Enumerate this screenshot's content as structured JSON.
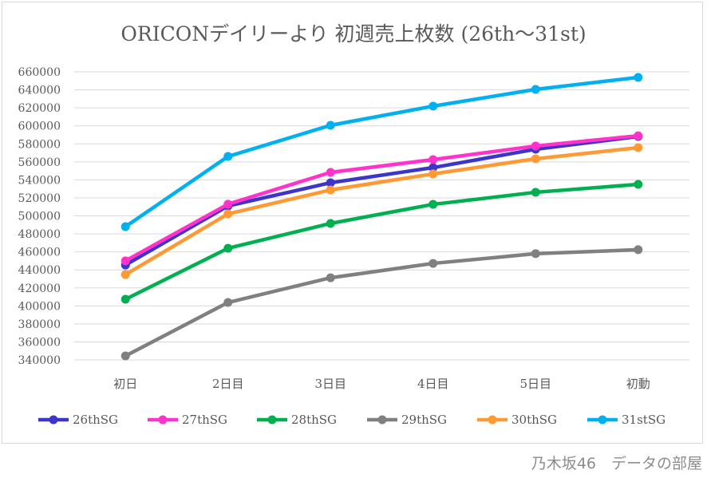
{
  "watermark": "乃木坂46　データの部屋",
  "chart_data": {
    "type": "line",
    "title": "ORICONデイリーより 初週売上枚数 (26th〜31st)",
    "categories": [
      "初日",
      "2日目",
      "3日目",
      "4日目",
      "5日目",
      "初動"
    ],
    "ylim": [
      340000,
      660000
    ],
    "ytick_step": 20000,
    "grid": true,
    "legend_position": "bottom",
    "series": [
      {
        "name": "26thSG",
        "color": "#3b35c9",
        "values": [
          445400,
          511000,
          536800,
          553600,
          574000,
          588200
        ]
      },
      {
        "name": "27thSG",
        "color": "#ff33cc",
        "values": [
          450000,
          513000,
          548300,
          562500,
          577600,
          589000
        ]
      },
      {
        "name": "28thSG",
        "color": "#00b050",
        "values": [
          407400,
          464000,
          491600,
          512800,
          526200,
          535000
        ]
      },
      {
        "name": "29thSG",
        "color": "#808080",
        "values": [
          344400,
          403800,
          431200,
          447200,
          458000,
          462400
        ]
      },
      {
        "name": "30thSG",
        "color": "#ff9933",
        "values": [
          434800,
          502200,
          528800,
          546600,
          563400,
          575800
        ]
      },
      {
        "name": "31stSG",
        "color": "#00b0f0",
        "values": [
          488000,
          566000,
          600600,
          621900,
          640500,
          653800
        ]
      }
    ]
  }
}
